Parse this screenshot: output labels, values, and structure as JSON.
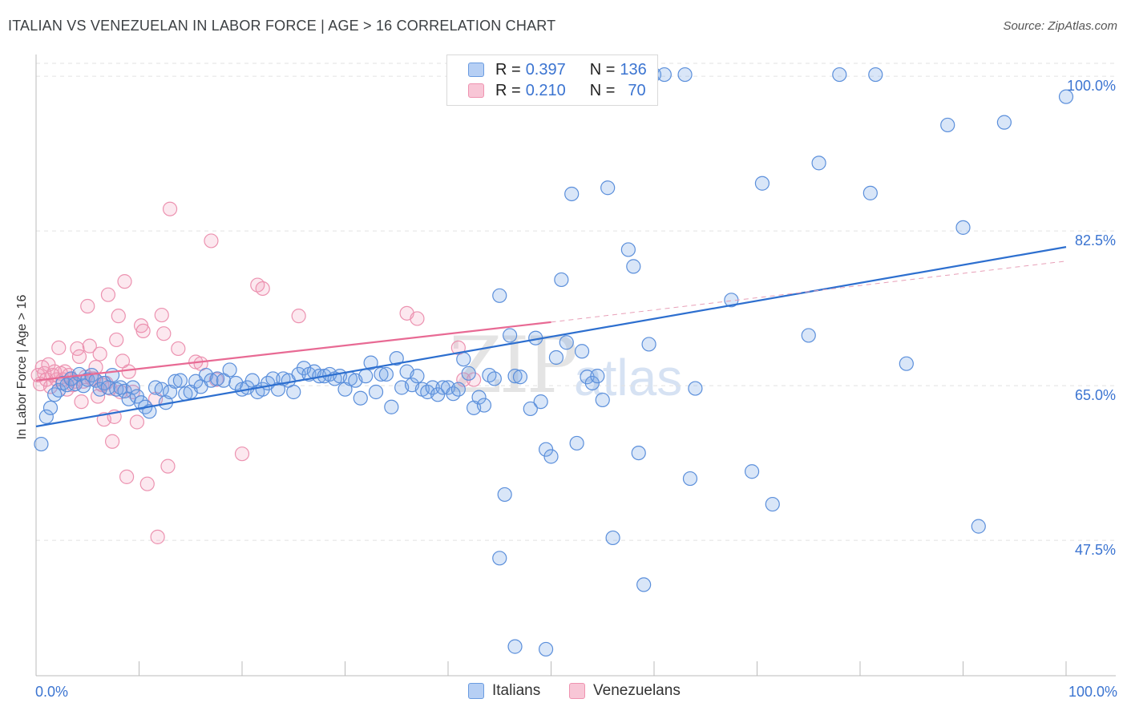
{
  "title": "ITALIAN VS VENEZUELAN IN LABOR FORCE | AGE > 16 CORRELATION CHART",
  "source": "Source: ZipAtlas.com",
  "watermark": {
    "a": "ZIP",
    "b": "atlas"
  },
  "legend": {
    "rows": [
      {
        "r_label": "R =",
        "r_value": "0.397",
        "n_label": "N =",
        "n_value": "136"
      },
      {
        "r_label": "R =",
        "r_value": "0.210",
        "n_label": "N =",
        "n_value": "70"
      }
    ]
  },
  "colors": {
    "italians": "#6a9be0",
    "venezuelans": "#ef93b0",
    "italians_line": "#2d6fcf",
    "venezuelans_line": "#e86a94",
    "tick_label": "#3b74d1"
  },
  "chart_data": {
    "type": "scatter",
    "title": "ITALIAN VS VENEZUELAN IN LABOR FORCE | AGE > 16 CORRELATION CHART",
    "ylabel": "In Labor Force | Age > 16",
    "xlabel": "",
    "xlim": [
      0,
      100
    ],
    "ylim": [
      32,
      103
    ],
    "x_tick_labels": [
      "0.0%",
      "100.0%"
    ],
    "y_ticks": [
      47.5,
      65.0,
      82.5,
      100.0
    ],
    "y_tick_labels": [
      "47.5%",
      "65.0%",
      "82.5%",
      "100.0%"
    ],
    "grid": "horizontal dashed",
    "legend_placement": "bottom-center",
    "series": [
      {
        "name": "Italians",
        "R": 0.397,
        "N": 136,
        "trend": {
          "x": [
            0,
            100
          ],
          "y": [
            60.2,
            80.5
          ]
        },
        "points": [
          [
            0.5,
            58.2
          ],
          [
            1.0,
            61.3
          ],
          [
            1.4,
            62.3
          ],
          [
            1.8,
            63.8
          ],
          [
            2.2,
            64.3
          ],
          [
            2.6,
            65.1
          ],
          [
            3.0,
            64.9
          ],
          [
            3.4,
            65.6
          ],
          [
            3.8,
            65.0
          ],
          [
            4.2,
            66.1
          ],
          [
            4.6,
            64.8
          ],
          [
            5.0,
            65.5
          ],
          [
            5.4,
            66.0
          ],
          [
            5.8,
            65.4
          ],
          [
            6.2,
            64.4
          ],
          [
            6.6,
            65.1
          ],
          [
            7.0,
            64.6
          ],
          [
            7.4,
            66.0
          ],
          [
            7.8,
            64.4
          ],
          [
            8.2,
            64.6
          ],
          [
            8.6,
            64.2
          ],
          [
            9.0,
            63.3
          ],
          [
            9.4,
            64.6
          ],
          [
            9.8,
            63.6
          ],
          [
            10.2,
            62.9
          ],
          [
            10.6,
            62.4
          ],
          [
            11.0,
            61.9
          ],
          [
            11.6,
            64.6
          ],
          [
            12.2,
            64.4
          ],
          [
            12.6,
            62.9
          ],
          [
            13.0,
            64.1
          ],
          [
            13.5,
            65.3
          ],
          [
            14.0,
            65.4
          ],
          [
            14.5,
            63.9
          ],
          [
            15.0,
            64.1
          ],
          [
            15.5,
            65.3
          ],
          [
            16.0,
            64.7
          ],
          [
            16.5,
            66.0
          ],
          [
            17.0,
            65.4
          ],
          [
            17.6,
            65.6
          ],
          [
            18.2,
            65.4
          ],
          [
            18.8,
            66.6
          ],
          [
            19.4,
            65.1
          ],
          [
            20.0,
            64.4
          ],
          [
            20.5,
            64.6
          ],
          [
            21.0,
            65.4
          ],
          [
            21.5,
            64.1
          ],
          [
            22.0,
            64.4
          ],
          [
            22.5,
            65.1
          ],
          [
            23.0,
            65.6
          ],
          [
            23.5,
            64.4
          ],
          [
            24.0,
            65.6
          ],
          [
            24.5,
            65.4
          ],
          [
            25.0,
            64.1
          ],
          [
            25.5,
            66.1
          ],
          [
            26.0,
            66.8
          ],
          [
            26.5,
            66.1
          ],
          [
            27.0,
            66.4
          ],
          [
            27.5,
            65.9
          ],
          [
            28.0,
            65.9
          ],
          [
            28.5,
            66.1
          ],
          [
            29.0,
            65.6
          ],
          [
            29.5,
            65.9
          ],
          [
            30.0,
            64.4
          ],
          [
            30.5,
            65.6
          ],
          [
            31.0,
            65.4
          ],
          [
            31.5,
            63.4
          ],
          [
            32.0,
            65.9
          ],
          [
            32.5,
            67.4
          ],
          [
            33.0,
            64.1
          ],
          [
            33.5,
            66.1
          ],
          [
            34.0,
            66.1
          ],
          [
            34.5,
            62.4
          ],
          [
            35.0,
            67.9
          ],
          [
            35.5,
            64.6
          ],
          [
            36.0,
            66.4
          ],
          [
            36.5,
            64.9
          ],
          [
            37.0,
            65.9
          ],
          [
            37.5,
            64.4
          ],
          [
            38.0,
            64.1
          ],
          [
            38.5,
            64.6
          ],
          [
            39.0,
            63.8
          ],
          [
            39.5,
            64.6
          ],
          [
            40.0,
            64.6
          ],
          [
            40.5,
            63.9
          ],
          [
            41.0,
            64.4
          ],
          [
            41.5,
            67.8
          ],
          [
            42.0,
            66.2
          ],
          [
            42.5,
            62.3
          ],
          [
            43.0,
            63.5
          ],
          [
            43.5,
            62.6
          ],
          [
            44.0,
            66.0
          ],
          [
            44.5,
            65.6
          ],
          [
            45.0,
            75.0
          ],
          [
            46.0,
            70.5
          ],
          [
            46.5,
            65.9
          ],
          [
            47.0,
            65.8
          ],
          [
            48.0,
            62.2
          ],
          [
            48.5,
            70.2
          ],
          [
            49.0,
            63.0
          ],
          [
            49.5,
            57.6
          ],
          [
            50.0,
            56.8
          ],
          [
            50.5,
            68.0
          ],
          [
            51.0,
            76.8
          ],
          [
            51.5,
            69.7
          ],
          [
            52.0,
            86.5
          ],
          [
            52.5,
            58.3
          ],
          [
            53.0,
            68.7
          ],
          [
            53.5,
            65.8
          ],
          [
            54.0,
            65.1
          ],
          [
            54.5,
            65.9
          ],
          [
            55.0,
            63.2
          ],
          [
            55.5,
            87.2
          ],
          [
            56.0,
            47.6
          ],
          [
            57.0,
            99.2
          ],
          [
            57.5,
            80.2
          ],
          [
            58.0,
            78.3
          ],
          [
            58.5,
            57.2
          ],
          [
            59.0,
            42.3
          ],
          [
            59.5,
            69.5
          ],
          [
            60.0,
            100
          ],
          [
            61.0,
            100
          ],
          [
            63.0,
            100
          ],
          [
            63.5,
            54.3
          ],
          [
            64.0,
            64.5
          ],
          [
            67.5,
            74.5
          ],
          [
            69.5,
            55.1
          ],
          [
            70.5,
            87.7
          ],
          [
            71.5,
            51.4
          ],
          [
            75.0,
            70.5
          ],
          [
            76.0,
            90.0
          ],
          [
            78.0,
            100
          ],
          [
            81.0,
            86.6
          ],
          [
            81.5,
            100
          ],
          [
            84.5,
            67.3
          ],
          [
            88.5,
            94.3
          ],
          [
            90.0,
            82.7
          ],
          [
            91.5,
            48.9
          ],
          [
            94.0,
            94.6
          ],
          [
            100,
            97.5
          ],
          [
            45.5,
            52.5
          ],
          [
            46.5,
            35.3
          ],
          [
            49.5,
            35.0
          ],
          [
            45,
            45.3
          ]
        ]
      },
      {
        "name": "Venezuelans",
        "R": 0.21,
        "N": 70,
        "trend": {
          "x": [
            0,
            50
          ],
          "y": [
            65.4,
            72.0
          ]
        },
        "trend_ext": {
          "x": [
            50,
            100
          ],
          "y": [
            72.0,
            78.9
          ]
        },
        "points": [
          [
            0.2,
            66.0
          ],
          [
            0.4,
            65.0
          ],
          [
            0.6,
            66.9
          ],
          [
            0.8,
            66.2
          ],
          [
            1.0,
            65.5
          ],
          [
            1.2,
            67.2
          ],
          [
            1.4,
            64.7
          ],
          [
            1.6,
            66.0
          ],
          [
            1.8,
            66.4
          ],
          [
            2.0,
            65.5
          ],
          [
            2.2,
            69.1
          ],
          [
            2.4,
            66.2
          ],
          [
            2.6,
            65.5
          ],
          [
            2.8,
            66.4
          ],
          [
            3.0,
            64.4
          ],
          [
            3.2,
            66.0
          ],
          [
            3.4,
            65.5
          ],
          [
            3.6,
            64.9
          ],
          [
            3.8,
            65.3
          ],
          [
            4.0,
            69.0
          ],
          [
            4.2,
            68.1
          ],
          [
            4.4,
            63.0
          ],
          [
            4.6,
            65.3
          ],
          [
            4.8,
            65.8
          ],
          [
            5.0,
            73.8
          ],
          [
            5.2,
            69.3
          ],
          [
            5.4,
            65.6
          ],
          [
            5.6,
            65.6
          ],
          [
            5.8,
            66.9
          ],
          [
            6.0,
            63.6
          ],
          [
            6.2,
            68.4
          ],
          [
            6.4,
            64.9
          ],
          [
            6.6,
            61.0
          ],
          [
            6.8,
            65.1
          ],
          [
            7.0,
            75.1
          ],
          [
            7.2,
            64.5
          ],
          [
            7.4,
            58.5
          ],
          [
            7.6,
            61.3
          ],
          [
            7.8,
            70.0
          ],
          [
            8.0,
            72.7
          ],
          [
            8.2,
            64.1
          ],
          [
            8.4,
            67.6
          ],
          [
            8.6,
            76.6
          ],
          [
            8.8,
            54.5
          ],
          [
            9.0,
            66.4
          ],
          [
            9.4,
            64.1
          ],
          [
            9.8,
            60.7
          ],
          [
            10.2,
            71.6
          ],
          [
            10.4,
            71.0
          ],
          [
            10.8,
            53.7
          ],
          [
            11.6,
            63.3
          ],
          [
            11.8,
            47.7
          ],
          [
            12.2,
            72.8
          ],
          [
            12.4,
            70.7
          ],
          [
            12.8,
            55.7
          ],
          [
            13.0,
            84.8
          ],
          [
            13.8,
            69.0
          ],
          [
            15.5,
            67.5
          ],
          [
            16.0,
            67.3
          ],
          [
            17.0,
            81.2
          ],
          [
            17.5,
            65.5
          ],
          [
            20.0,
            57.1
          ],
          [
            21.5,
            76.2
          ],
          [
            22.0,
            75.8
          ],
          [
            25.5,
            72.7
          ],
          [
            36.0,
            73.0
          ],
          [
            37.0,
            72.4
          ],
          [
            41.0,
            69.1
          ],
          [
            41.5,
            65.5
          ],
          [
            42.5,
            65.5
          ]
        ]
      }
    ]
  },
  "bottom_legend": {
    "items": [
      {
        "label": "Italians"
      },
      {
        "label": "Venezuelans"
      }
    ]
  }
}
